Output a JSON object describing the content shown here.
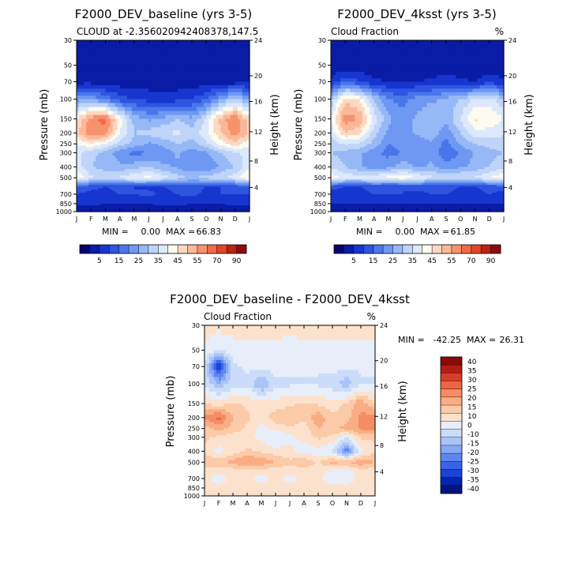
{
  "colors": {
    "page_background": "#ffffff",
    "cloud_colormap": [
      "#07076b",
      "#0a1ca6",
      "#1736cf",
      "#2e55e0",
      "#4a76ec",
      "#6e98f2",
      "#97b8f6",
      "#bed4f8",
      "#dce8fb",
      "#fbfbf0",
      "#fcd8c3",
      "#fbb898",
      "#f7926d",
      "#f06a45",
      "#e14428",
      "#bb2210",
      "#8d0d0a"
    ],
    "diff_colormap": [
      "#00147f",
      "#0026b0",
      "#1a44d6",
      "#3a64e8",
      "#5f86f0",
      "#87a8f5",
      "#aac4f7",
      "#cadcf9",
      "#e7eefa",
      "#fce2cd",
      "#fbcaa8",
      "#f9ad84",
      "#f58c63",
      "#ec6444",
      "#d63e29",
      "#b31c12",
      "#8a0a08"
    ]
  },
  "chart_data": [
    {
      "id": "baseline",
      "type": "heatmap",
      "title": "F2000_DEV_baseline (yrs 3-5)",
      "subtitle_left": "CLOUD at -2.356020942408378,147.5",
      "subtitle_right": "",
      "ylabel": "Pressure (mb)",
      "ylabel_right": "Height (km)",
      "x_ticks": [
        "J",
        "F",
        "M",
        "A",
        "M",
        "J",
        "J",
        "A",
        "S",
        "O",
        "N",
        "D",
        "J"
      ],
      "y_ticks": [
        30,
        50,
        70,
        100,
        150,
        200,
        250,
        300,
        400,
        500,
        700,
        850,
        1000
      ],
      "y_right_ticks": [
        24,
        20,
        16,
        12,
        8,
        4
      ],
      "ylim": [
        30,
        1000
      ],
      "y_scale": "log",
      "min_label": "MIN =",
      "min_value": "0.00",
      "max_label": "MAX =",
      "max_value": "66.83",
      "colorbar": {
        "orientation": "horizontal",
        "labels": [
          "5",
          "15",
          "25",
          "35",
          "45",
          "55",
          "70",
          "90"
        ]
      },
      "levels": [
        1,
        5,
        10,
        15,
        20,
        25,
        30,
        35,
        40,
        45,
        50,
        55,
        60,
        70,
        80,
        90
      ],
      "pressure_levels": [
        30,
        50,
        70,
        100,
        150,
        200,
        250,
        300,
        400,
        500,
        600,
        700,
        850,
        1000
      ],
      "values": [
        [
          1,
          1,
          1,
          1,
          1,
          1,
          1,
          1,
          1,
          1,
          1,
          1,
          1
        ],
        [
          1,
          1,
          1,
          1,
          1,
          1,
          1,
          1,
          1,
          1,
          1,
          1,
          1
        ],
        [
          3,
          3,
          2,
          2,
          2,
          2,
          2,
          2,
          2,
          2,
          2,
          2,
          3
        ],
        [
          22,
          24,
          18,
          12,
          10,
          8,
          7,
          8,
          10,
          14,
          24,
          32,
          24
        ],
        [
          45,
          58,
          62,
          42,
          28,
          24,
          26,
          30,
          26,
          36,
          52,
          60,
          47
        ],
        [
          48,
          60,
          58,
          40,
          30,
          32,
          35,
          36,
          32,
          38,
          50,
          58,
          49
        ],
        [
          40,
          44,
          40,
          32,
          28,
          24,
          26,
          30,
          28,
          34,
          42,
          48,
          41
        ],
        [
          36,
          32,
          28,
          22,
          18,
          20,
          22,
          26,
          22,
          24,
          30,
          34,
          37
        ],
        [
          38,
          30,
          28,
          26,
          28,
          30,
          26,
          24,
          20,
          20,
          26,
          30,
          39
        ],
        [
          44,
          36,
          34,
          36,
          40,
          42,
          38,
          32,
          30,
          32,
          34,
          38,
          45
        ],
        [
          14,
          12,
          10,
          12,
          10,
          8,
          10,
          12,
          12,
          10,
          10,
          12,
          14
        ],
        [
          10,
          8,
          8,
          10,
          10,
          12,
          8,
          10,
          12,
          8,
          10,
          10,
          10
        ],
        [
          6,
          6,
          5,
          5,
          5,
          5,
          6,
          6,
          5,
          5,
          5,
          6,
          6
        ],
        [
          2,
          2,
          2,
          2,
          2,
          2,
          2,
          2,
          2,
          2,
          2,
          2,
          2
        ]
      ]
    },
    {
      "id": "4ksst",
      "type": "heatmap",
      "title": "F2000_DEV_4ksst (yrs 3-5)",
      "subtitle_left": "Cloud Fraction",
      "subtitle_right": "%",
      "ylabel": "Pressure (mb)",
      "ylabel_right": "Height (km)",
      "x_ticks": [
        "J",
        "F",
        "M",
        "A",
        "M",
        "J",
        "J",
        "A",
        "S",
        "O",
        "N",
        "D",
        "J"
      ],
      "y_ticks": [
        30,
        50,
        70,
        100,
        150,
        200,
        250,
        300,
        400,
        500,
        700,
        850,
        1000
      ],
      "y_right_ticks": [
        24,
        20,
        16,
        12,
        8,
        4
      ],
      "ylim": [
        30,
        1000
      ],
      "y_scale": "log",
      "min_label": "MIN =",
      "min_value": "0.00",
      "max_label": "MAX =",
      "max_value": "61.85",
      "colorbar": {
        "orientation": "horizontal",
        "labels": [
          "5",
          "15",
          "25",
          "35",
          "45",
          "55",
          "70",
          "90"
        ]
      },
      "levels": [
        1,
        5,
        10,
        15,
        20,
        25,
        30,
        35,
        40,
        45,
        50,
        55,
        60,
        70,
        80,
        90
      ],
      "pressure_levels": [
        30,
        50,
        70,
        100,
        150,
        200,
        250,
        300,
        400,
        500,
        600,
        700,
        850,
        1000
      ],
      "values": [
        [
          1,
          1,
          1,
          1,
          1,
          1,
          1,
          1,
          1,
          1,
          1,
          1,
          1
        ],
        [
          1,
          1,
          1,
          1,
          1,
          1,
          1,
          1,
          1,
          1,
          1,
          1,
          1
        ],
        [
          6,
          14,
          10,
          6,
          5,
          5,
          5,
          6,
          8,
          6,
          5,
          8,
          6
        ],
        [
          30,
          48,
          44,
          30,
          20,
          18,
          22,
          24,
          26,
          30,
          36,
          38,
          30
        ],
        [
          40,
          58,
          55,
          38,
          26,
          22,
          26,
          30,
          26,
          36,
          46,
          44,
          40
        ],
        [
          36,
          50,
          46,
          32,
          24,
          22,
          26,
          28,
          22,
          30,
          38,
          38,
          36
        ],
        [
          32,
          36,
          34,
          28,
          20,
          22,
          22,
          24,
          18,
          26,
          30,
          32,
          32
        ],
        [
          30,
          28,
          26,
          22,
          18,
          20,
          22,
          24,
          16,
          20,
          26,
          28,
          30
        ],
        [
          34,
          30,
          26,
          20,
          24,
          28,
          24,
          26,
          22,
          24,
          26,
          30,
          34
        ],
        [
          44,
          38,
          38,
          40,
          42,
          44,
          40,
          36,
          34,
          36,
          36,
          40,
          44
        ],
        [
          12,
          10,
          10,
          12,
          10,
          10,
          12,
          12,
          12,
          10,
          10,
          12,
          12
        ],
        [
          8,
          8,
          8,
          10,
          10,
          10,
          8,
          10,
          10,
          8,
          8,
          10,
          8
        ],
        [
          5,
          5,
          5,
          5,
          5,
          5,
          5,
          5,
          5,
          5,
          5,
          5,
          5
        ],
        [
          2,
          2,
          2,
          2,
          2,
          2,
          2,
          2,
          2,
          2,
          2,
          2,
          2
        ]
      ]
    },
    {
      "id": "difference",
      "type": "heatmap",
      "title": "F2000_DEV_baseline - F2000_DEV_4ksst",
      "subtitle_left": "Cloud Fraction",
      "subtitle_right": "%",
      "ylabel": "Pressure (mb)",
      "ylabel_right": "Height (km)",
      "x_ticks": [
        "J",
        "F",
        "M",
        "A",
        "M",
        "J",
        "J",
        "A",
        "S",
        "O",
        "N",
        "D",
        "J"
      ],
      "y_ticks": [
        30,
        50,
        70,
        100,
        150,
        200,
        250,
        300,
        400,
        500,
        700,
        850,
        1000
      ],
      "y_right_ticks": [
        24,
        20,
        16,
        12,
        8,
        4
      ],
      "ylim": [
        30,
        1000
      ],
      "y_scale": "log",
      "min_label": "MIN =",
      "min_value": "-42.25",
      "max_label": "MAX =",
      "max_value": "26.31",
      "colorbar": {
        "orientation": "vertical",
        "labels": [
          "40",
          "35",
          "30",
          "25",
          "20",
          "15",
          "10",
          "0",
          "-10",
          "-15",
          "-20",
          "-25",
          "-30",
          "-35",
          "-40"
        ]
      },
      "levels": [
        -40,
        -35,
        -30,
        -25,
        -20,
        -15,
        -10,
        -5,
        0,
        5,
        10,
        15,
        20,
        25,
        30,
        35,
        40
      ],
      "pressure_levels": [
        30,
        50,
        70,
        100,
        150,
        200,
        250,
        300,
        400,
        500,
        600,
        700,
        850,
        1000
      ],
      "values": [
        [
          3,
          1,
          3,
          3,
          3,
          3,
          1,
          3,
          3,
          3,
          3,
          3,
          3
        ],
        [
          -2,
          -3,
          -3,
          -2,
          -2,
          -2,
          -2,
          -2,
          -2,
          -2,
          -2,
          -2,
          -2
        ],
        [
          -4,
          -38,
          -6,
          -4,
          -3,
          -3,
          -3,
          -3,
          -4,
          -3,
          -3,
          -4,
          -4
        ],
        [
          -6,
          -14,
          -8,
          -6,
          -16,
          -6,
          -6,
          -6,
          -6,
          -8,
          -14,
          -6,
          -6
        ],
        [
          5,
          2,
          6,
          4,
          2,
          2,
          4,
          6,
          4,
          2,
          6,
          14,
          5
        ],
        [
          16,
          22,
          10,
          6,
          2,
          8,
          10,
          6,
          14,
          6,
          8,
          16,
          18
        ],
        [
          8,
          12,
          8,
          4,
          -2,
          2,
          4,
          2,
          10,
          8,
          12,
          16,
          16
        ],
        [
          6,
          4,
          2,
          2,
          -2,
          -6,
          -2,
          2,
          6,
          4,
          -4,
          6,
          6
        ],
        [
          4,
          -2,
          2,
          6,
          4,
          2,
          2,
          -4,
          -2,
          -6,
          -24,
          -2,
          4
        ],
        [
          10,
          8,
          12,
          16,
          14,
          10,
          6,
          10,
          4,
          12,
          10,
          14,
          10
        ],
        [
          2,
          2,
          2,
          2,
          2,
          2,
          2,
          2,
          2,
          -2,
          -2,
          2,
          2
        ],
        [
          2,
          -3,
          2,
          2,
          -2,
          2,
          -2,
          2,
          2,
          -4,
          -3,
          2,
          2
        ],
        [
          2,
          2,
          2,
          2,
          2,
          2,
          2,
          2,
          2,
          2,
          2,
          2,
          2
        ],
        [
          1,
          1,
          1,
          1,
          1,
          1,
          1,
          1,
          1,
          1,
          1,
          1,
          1
        ]
      ]
    }
  ]
}
